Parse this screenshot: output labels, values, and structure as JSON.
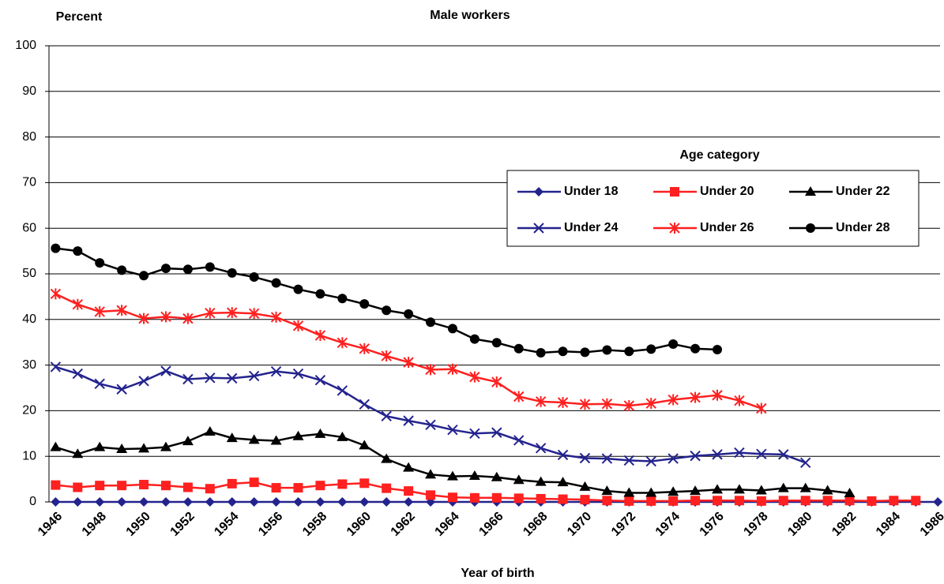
{
  "chart_data": {
    "type": "line",
    "title": "Male workers",
    "y_label": "Percent",
    "x_label": "Year of birth",
    "legend_title": "Age category",
    "x": [
      1946,
      1947,
      1948,
      1949,
      1950,
      1951,
      1952,
      1953,
      1954,
      1955,
      1956,
      1957,
      1958,
      1959,
      1960,
      1961,
      1962,
      1963,
      1964,
      1965,
      1966,
      1967,
      1968,
      1969,
      1970,
      1971,
      1972,
      1973,
      1974,
      1975,
      1976,
      1977,
      1978,
      1979,
      1980,
      1981,
      1982,
      1983,
      1984,
      1985,
      1986
    ],
    "xlim": [
      1945.7,
      1986.1
    ],
    "xticks": [
      1946,
      1948,
      1950,
      1952,
      1954,
      1956,
      1958,
      1960,
      1962,
      1964,
      1966,
      1968,
      1970,
      1972,
      1974,
      1976,
      1978,
      1980,
      1982,
      1984,
      1986
    ],
    "ylim": [
      0,
      100
    ],
    "yticks": [
      0,
      10,
      20,
      30,
      40,
      50,
      60,
      70,
      80,
      90,
      100
    ],
    "grid": true,
    "series": [
      {
        "name": "Under 18",
        "color": "#23238e",
        "marker": "diamond",
        "values": [
          0,
          0,
          0,
          0,
          0,
          0,
          0,
          0,
          0,
          0,
          0,
          0,
          0,
          0,
          0,
          0,
          0,
          0,
          0,
          0,
          0,
          0,
          0,
          0,
          0,
          0,
          0,
          0,
          0,
          0,
          0,
          0,
          0,
          0,
          0,
          0,
          0,
          0,
          0,
          0,
          0
        ]
      },
      {
        "name": "Under 20",
        "color": "#ff2020",
        "marker": "square",
        "values": [
          3.7,
          3.2,
          3.6,
          3.6,
          3.8,
          3.6,
          3.2,
          2.9,
          4.0,
          4.3,
          3.1,
          3.1,
          3.6,
          3.9,
          4.1,
          3.0,
          2.4,
          1.5,
          1.0,
          0.9,
          0.9,
          0.8,
          0.7,
          0.6,
          0.5,
          0.3,
          0.2,
          0.2,
          0.2,
          0.3,
          0.3,
          0.3,
          0.2,
          0.3,
          0.3,
          0.3,
          0.3,
          0.2,
          0.3,
          0.3,
          null
        ]
      },
      {
        "name": "Under 22",
        "color": "#000000",
        "marker": "triangle",
        "values": [
          12,
          10.5,
          12,
          11.6,
          11.7,
          12,
          13.3,
          15.4,
          14,
          13.6,
          13.4,
          14.4,
          14.9,
          14.2,
          12.4,
          9.4,
          7.5,
          6,
          5.6,
          5.7,
          5.4,
          4.8,
          4.4,
          4.3,
          3.3,
          2.4,
          2.0,
          2.0,
          2.2,
          2.4,
          2.7,
          2.7,
          2.5,
          3.0,
          3.0,
          2.5,
          1.9,
          null,
          null,
          null,
          null
        ]
      },
      {
        "name": "Under 24",
        "color": "#23238e",
        "marker": "x",
        "values": [
          29.6,
          28.1,
          25.9,
          24.7,
          26.5,
          28.7,
          26.9,
          27.2,
          27.1,
          27.6,
          28.6,
          28.1,
          26.7,
          24.4,
          21.4,
          18.8,
          17.8,
          16.9,
          15.8,
          15.0,
          15.2,
          13.5,
          11.8,
          10.3,
          9.6,
          9.5,
          9.1,
          8.9,
          9.5,
          10.1,
          10.4,
          10.8,
          10.5,
          10.4,
          8.6,
          null,
          null,
          null,
          null,
          null,
          null
        ]
      },
      {
        "name": "Under 26",
        "color": "#ff2020",
        "marker": "asterisk",
        "values": [
          45.6,
          43.3,
          41.7,
          42.0,
          40.2,
          40.6,
          40.2,
          41.4,
          41.5,
          41.3,
          40.5,
          38.6,
          36.5,
          34.9,
          33.6,
          32.0,
          30.6,
          29.0,
          29.1,
          27.4,
          26.3,
          23.1,
          22.0,
          21.8,
          21.4,
          21.5,
          21.1,
          21.6,
          22.4,
          22.9,
          23.4,
          22.2,
          20.5,
          null,
          null,
          null,
          null,
          null,
          null,
          null,
          null
        ]
      },
      {
        "name": "Under 28",
        "color": "#000000",
        "marker": "circle",
        "values": [
          55.6,
          55.0,
          52.4,
          50.8,
          49.6,
          51.2,
          51.0,
          51.5,
          50.2,
          49.3,
          48.0,
          46.6,
          45.6,
          44.6,
          43.4,
          42.0,
          41.2,
          39.4,
          38.0,
          35.7,
          34.9,
          33.6,
          32.7,
          33.0,
          32.8,
          33.3,
          33.0,
          33.5,
          34.6,
          33.6,
          33.4,
          null,
          null,
          null,
          null,
          null,
          null,
          null,
          null,
          null,
          null
        ]
      }
    ]
  }
}
